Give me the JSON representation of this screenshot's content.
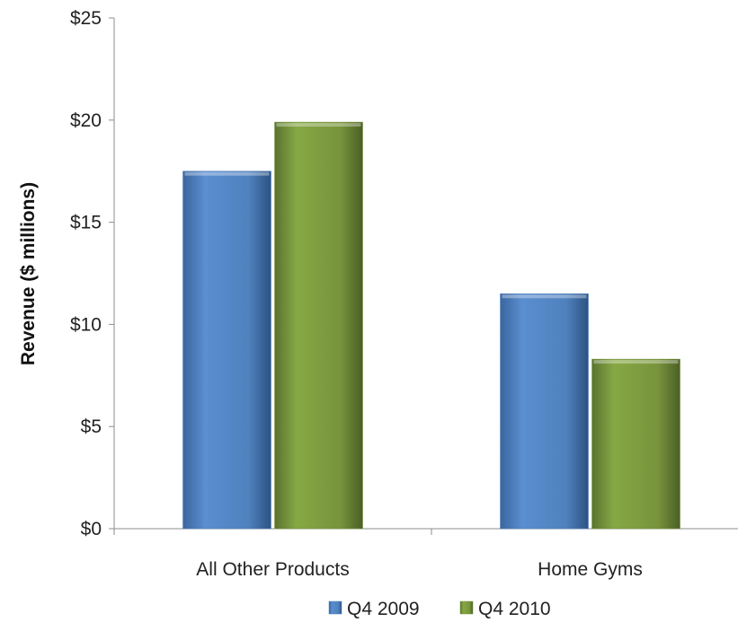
{
  "chart_data": {
    "type": "bar",
    "title": "",
    "xlabel": "",
    "ylabel": "Revenue ($ millions)",
    "categories": [
      "All Other Products",
      "Home Gyms"
    ],
    "series": [
      {
        "name": "Q4 2009",
        "values": [
          17.5,
          11.5
        ],
        "color": "#4f81bd"
      },
      {
        "name": "Q4 2010",
        "values": [
          19.9,
          8.3
        ],
        "color": "#77933c"
      }
    ],
    "ylim": [
      0,
      25
    ],
    "yticks": [
      0,
      5,
      10,
      15,
      20,
      25
    ],
    "ytick_labels": [
      "$0",
      "$5",
      "$10",
      "$15",
      "$20",
      "$25"
    ],
    "grid": false,
    "legend_position": "bottom"
  }
}
